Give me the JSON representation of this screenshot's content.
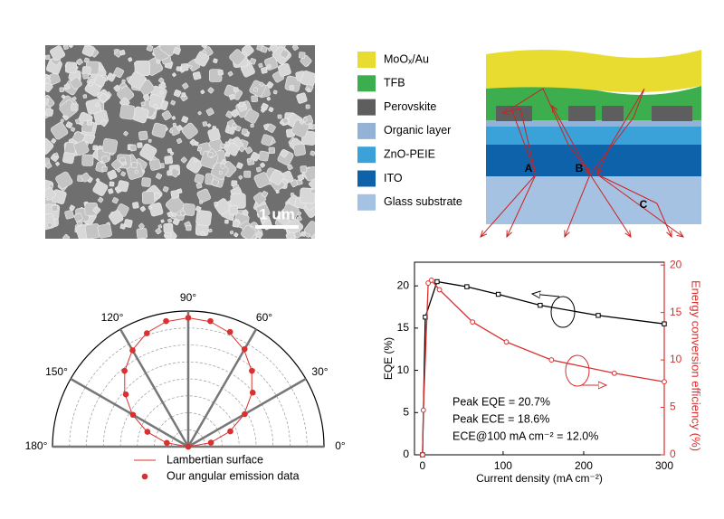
{
  "sem_image": {
    "scale_label": "1 um"
  },
  "layer_legend": [
    {
      "name": "MoOₓ/Au",
      "color": "#e8dc30"
    },
    {
      "name": "TFB",
      "color": "#3cae4e"
    },
    {
      "name": "Perovskite",
      "color": "#5e5e5e"
    },
    {
      "name": "Organic layer",
      "color": "#94b2d6"
    },
    {
      "name": "ZnO-PEIE",
      "color": "#3aa2d8"
    },
    {
      "name": "ITO",
      "color": "#0e62aa"
    },
    {
      "name": "Glass substrate",
      "color": "#a6c2e2"
    }
  ],
  "schematic": {
    "labels": [
      "A",
      "B",
      "C"
    ]
  },
  "chart_data": [
    {
      "type": "polar",
      "theta": [
        0,
        10,
        20,
        30,
        40,
        50,
        60,
        70,
        80,
        90,
        100,
        110,
        120,
        130,
        140,
        150,
        160,
        170,
        180
      ],
      "rlim": [
        0,
        1
      ],
      "rticks": [
        0.125,
        0.25,
        0.375,
        0.5,
        0.625,
        0.75,
        0.875
      ],
      "thetaticks": [
        {
          "value": 0,
          "label": "0°"
        },
        {
          "value": 30,
          "label": "30°"
        },
        {
          "value": 60,
          "label": "60°"
        },
        {
          "value": 90,
          "label": "90°"
        },
        {
          "value": 120,
          "label": "120°"
        },
        {
          "value": 150,
          "label": "150°"
        },
        {
          "value": 180,
          "label": "180°"
        }
      ],
      "series": [
        {
          "name": "Lambertian surface",
          "kind": "line",
          "color": "#d93030",
          "values": [
            0,
            0.165,
            0.325,
            0.475,
            0.611,
            0.728,
            0.823,
            0.893,
            0.936,
            0.95,
            0.936,
            0.893,
            0.823,
            0.728,
            0.611,
            0.475,
            0.325,
            0.165,
            0
          ]
        },
        {
          "name": "Our angular emission data",
          "kind": "scatter",
          "color": "#d93030",
          "values": [
            0,
            0.17,
            0.33,
            0.48,
            0.62,
            0.73,
            0.83,
            0.9,
            0.94,
            0.95,
            0.94,
            0.89,
            0.82,
            0.73,
            0.6,
            0.47,
            0.32,
            0.16,
            0
          ]
        }
      ]
    },
    {
      "type": "line",
      "xlabel": "Current density (mA cm⁻²)",
      "ylabel": "EQE (%)",
      "y2label": "Energy conversion efficiency (%)",
      "xlim": [
        -10,
        300
      ],
      "xticks": [
        0,
        100,
        200,
        300
      ],
      "ylim": [
        0,
        22.8
      ],
      "yticks": [
        0,
        5,
        10,
        15,
        20
      ],
      "y2lim": [
        0,
        20.3
      ],
      "y2ticks": [
        0,
        5,
        10,
        15,
        20
      ],
      "annotations": [
        "Peak EQE = 20.7%",
        "Peak ECE = 18.6%",
        "ECE@100 mA cm⁻² = 12.0%"
      ],
      "series": [
        {
          "name": "EQE",
          "color": "#000000",
          "marker": "square",
          "x": [
            0,
            3.4,
            18,
            55,
            94,
            146,
            218,
            300
          ],
          "values": [
            0,
            16.3,
            20.5,
            19.9,
            19.0,
            17.7,
            16.5,
            15.5
          ]
        },
        {
          "name": "ECE",
          "color": "#d93030",
          "marker": "circle",
          "axis": "y2",
          "x": [
            0,
            1,
            7,
            11,
            21,
            62,
            104,
            160,
            238,
            300
          ],
          "values": [
            0,
            4.7,
            18.1,
            18.4,
            17.4,
            14.0,
            11.9,
            10.0,
            8.6,
            7.7
          ]
        }
      ]
    }
  ]
}
